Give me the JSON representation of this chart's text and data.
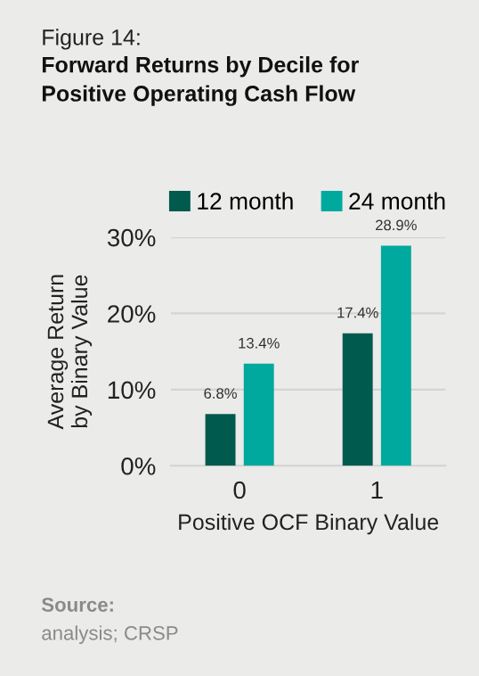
{
  "chart_data": {
    "type": "bar",
    "subtitle": "Figure 14:",
    "title": "Forward Returns by Decile for\nPositive Operating Cash Flow",
    "ylabel": "Average Return\nby Binary Value",
    "xlabel": "Positive OCF Binary Value",
    "categories": [
      "0",
      "1"
    ],
    "series": [
      {
        "name": "12 month",
        "color": "#005a4e",
        "values": [
          6.8,
          17.4
        ],
        "value_labels": [
          "6.8%",
          "17.4%"
        ]
      },
      {
        "name": "24 month",
        "color": "#00a99d",
        "values": [
          13.4,
          28.9
        ],
        "value_labels": [
          "13.4%",
          "28.9%"
        ]
      }
    ],
    "ylim": [
      0,
      30
    ],
    "yticks": [
      {
        "value": 0,
        "label": "0%"
      },
      {
        "value": 10,
        "label": "10%"
      },
      {
        "value": 20,
        "label": "20%"
      },
      {
        "value": 30,
        "label": "30%"
      }
    ],
    "grid": "y",
    "legend": "top",
    "annotations": [
      "Source:",
      "analysis; CRSP"
    ]
  }
}
